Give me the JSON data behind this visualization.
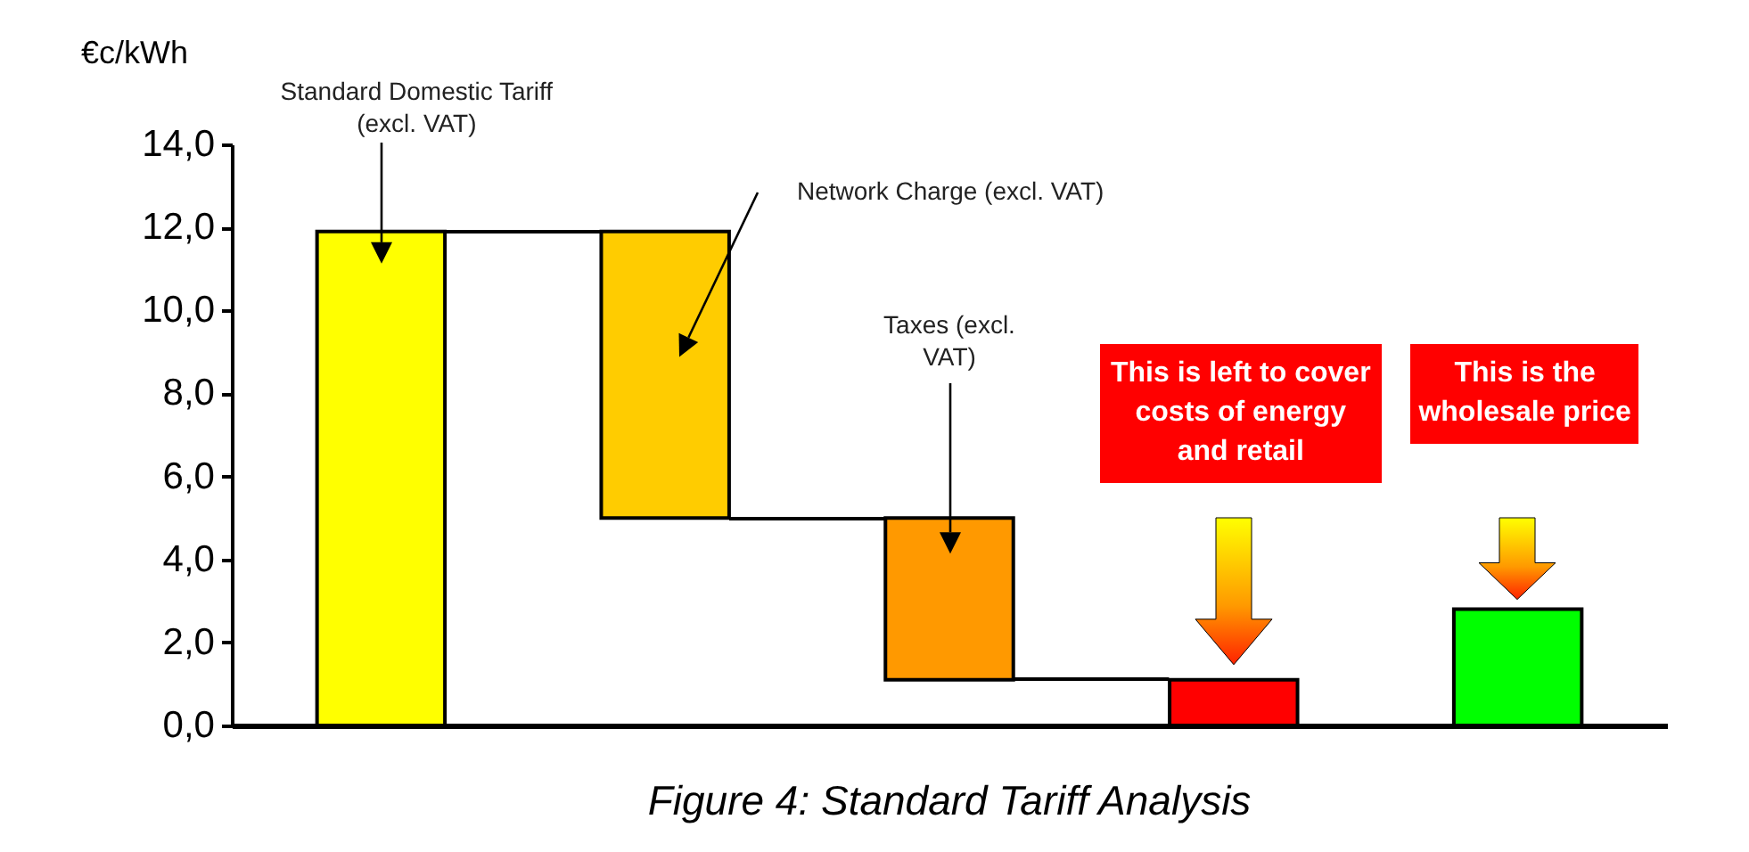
{
  "chart_data": {
    "type": "bar",
    "title": "Figure 4: Standard Tariff Analysis",
    "ylabel": "€c/kWh",
    "categories": [
      null,
      null,
      null,
      null,
      null
    ],
    "values": [
      11.9,
      6.9,
      3.9,
      1.1,
      2.8
    ],
    "base": [
      0,
      5.0,
      1.1,
      0,
      0
    ],
    "colors": [
      "#ffff00",
      "#ffcc00",
      "#ff9900",
      "#ff0000",
      "#00ff00"
    ],
    "ylim": [
      0,
      14
    ],
    "yticks": [
      {
        "value": 0,
        "label": "0,0"
      },
      {
        "value": 2,
        "label": "2,0"
      },
      {
        "value": 4,
        "label": "4,0"
      },
      {
        "value": 6,
        "label": "6,0"
      },
      {
        "value": 8,
        "label": "8,0"
      },
      {
        "value": 10,
        "label": "10,0"
      },
      {
        "value": 12,
        "label": "12,0"
      },
      {
        "value": 14,
        "label": "14,0"
      }
    ],
    "annotations": [
      "Standard Domestic Tariff (excl. VAT)",
      "Network Charge (excl. VAT)",
      "Taxes (excl. VAT)",
      "This is left to cover costs of energy and retail",
      "This is the wholesale price"
    ],
    "grid": false,
    "legend": false
  }
}
